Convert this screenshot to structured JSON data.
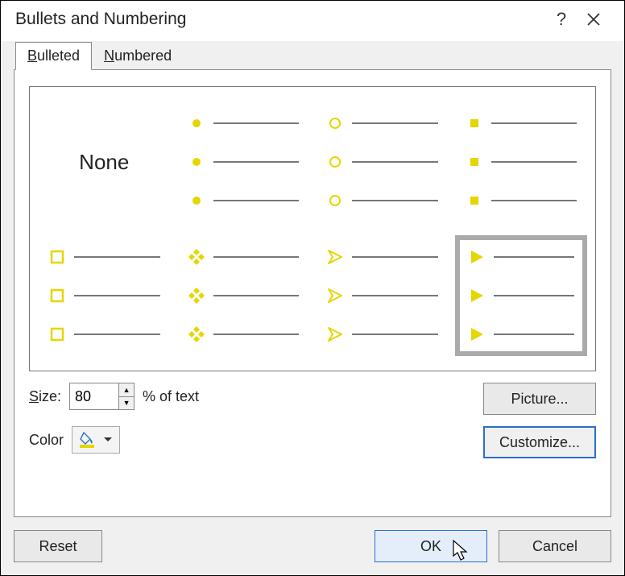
{
  "dialog": {
    "title": "Bullets and Numbering",
    "help_label": "?",
    "close_label": "×"
  },
  "tabs": {
    "bulleted": "Bulleted",
    "numbered": "Numbered",
    "active": "bulleted"
  },
  "gallery": {
    "accent_color": "#e5d600",
    "line_color": "#777777",
    "selected_index": 7,
    "tiles": [
      {
        "type": "none",
        "label": "None"
      },
      {
        "type": "disc"
      },
      {
        "type": "circle"
      },
      {
        "type": "small-square"
      },
      {
        "type": "hollow-square"
      },
      {
        "type": "four-diamond"
      },
      {
        "type": "chevron-arrow"
      },
      {
        "type": "triangle-play"
      }
    ]
  },
  "size": {
    "label": "Size:",
    "value": "80",
    "suffix": "% of text"
  },
  "color": {
    "label": "Color",
    "swatch": "#e5d600"
  },
  "buttons": {
    "picture": "Picture...",
    "customize": "Customize...",
    "reset": "Reset",
    "ok": "OK",
    "cancel": "Cancel"
  }
}
